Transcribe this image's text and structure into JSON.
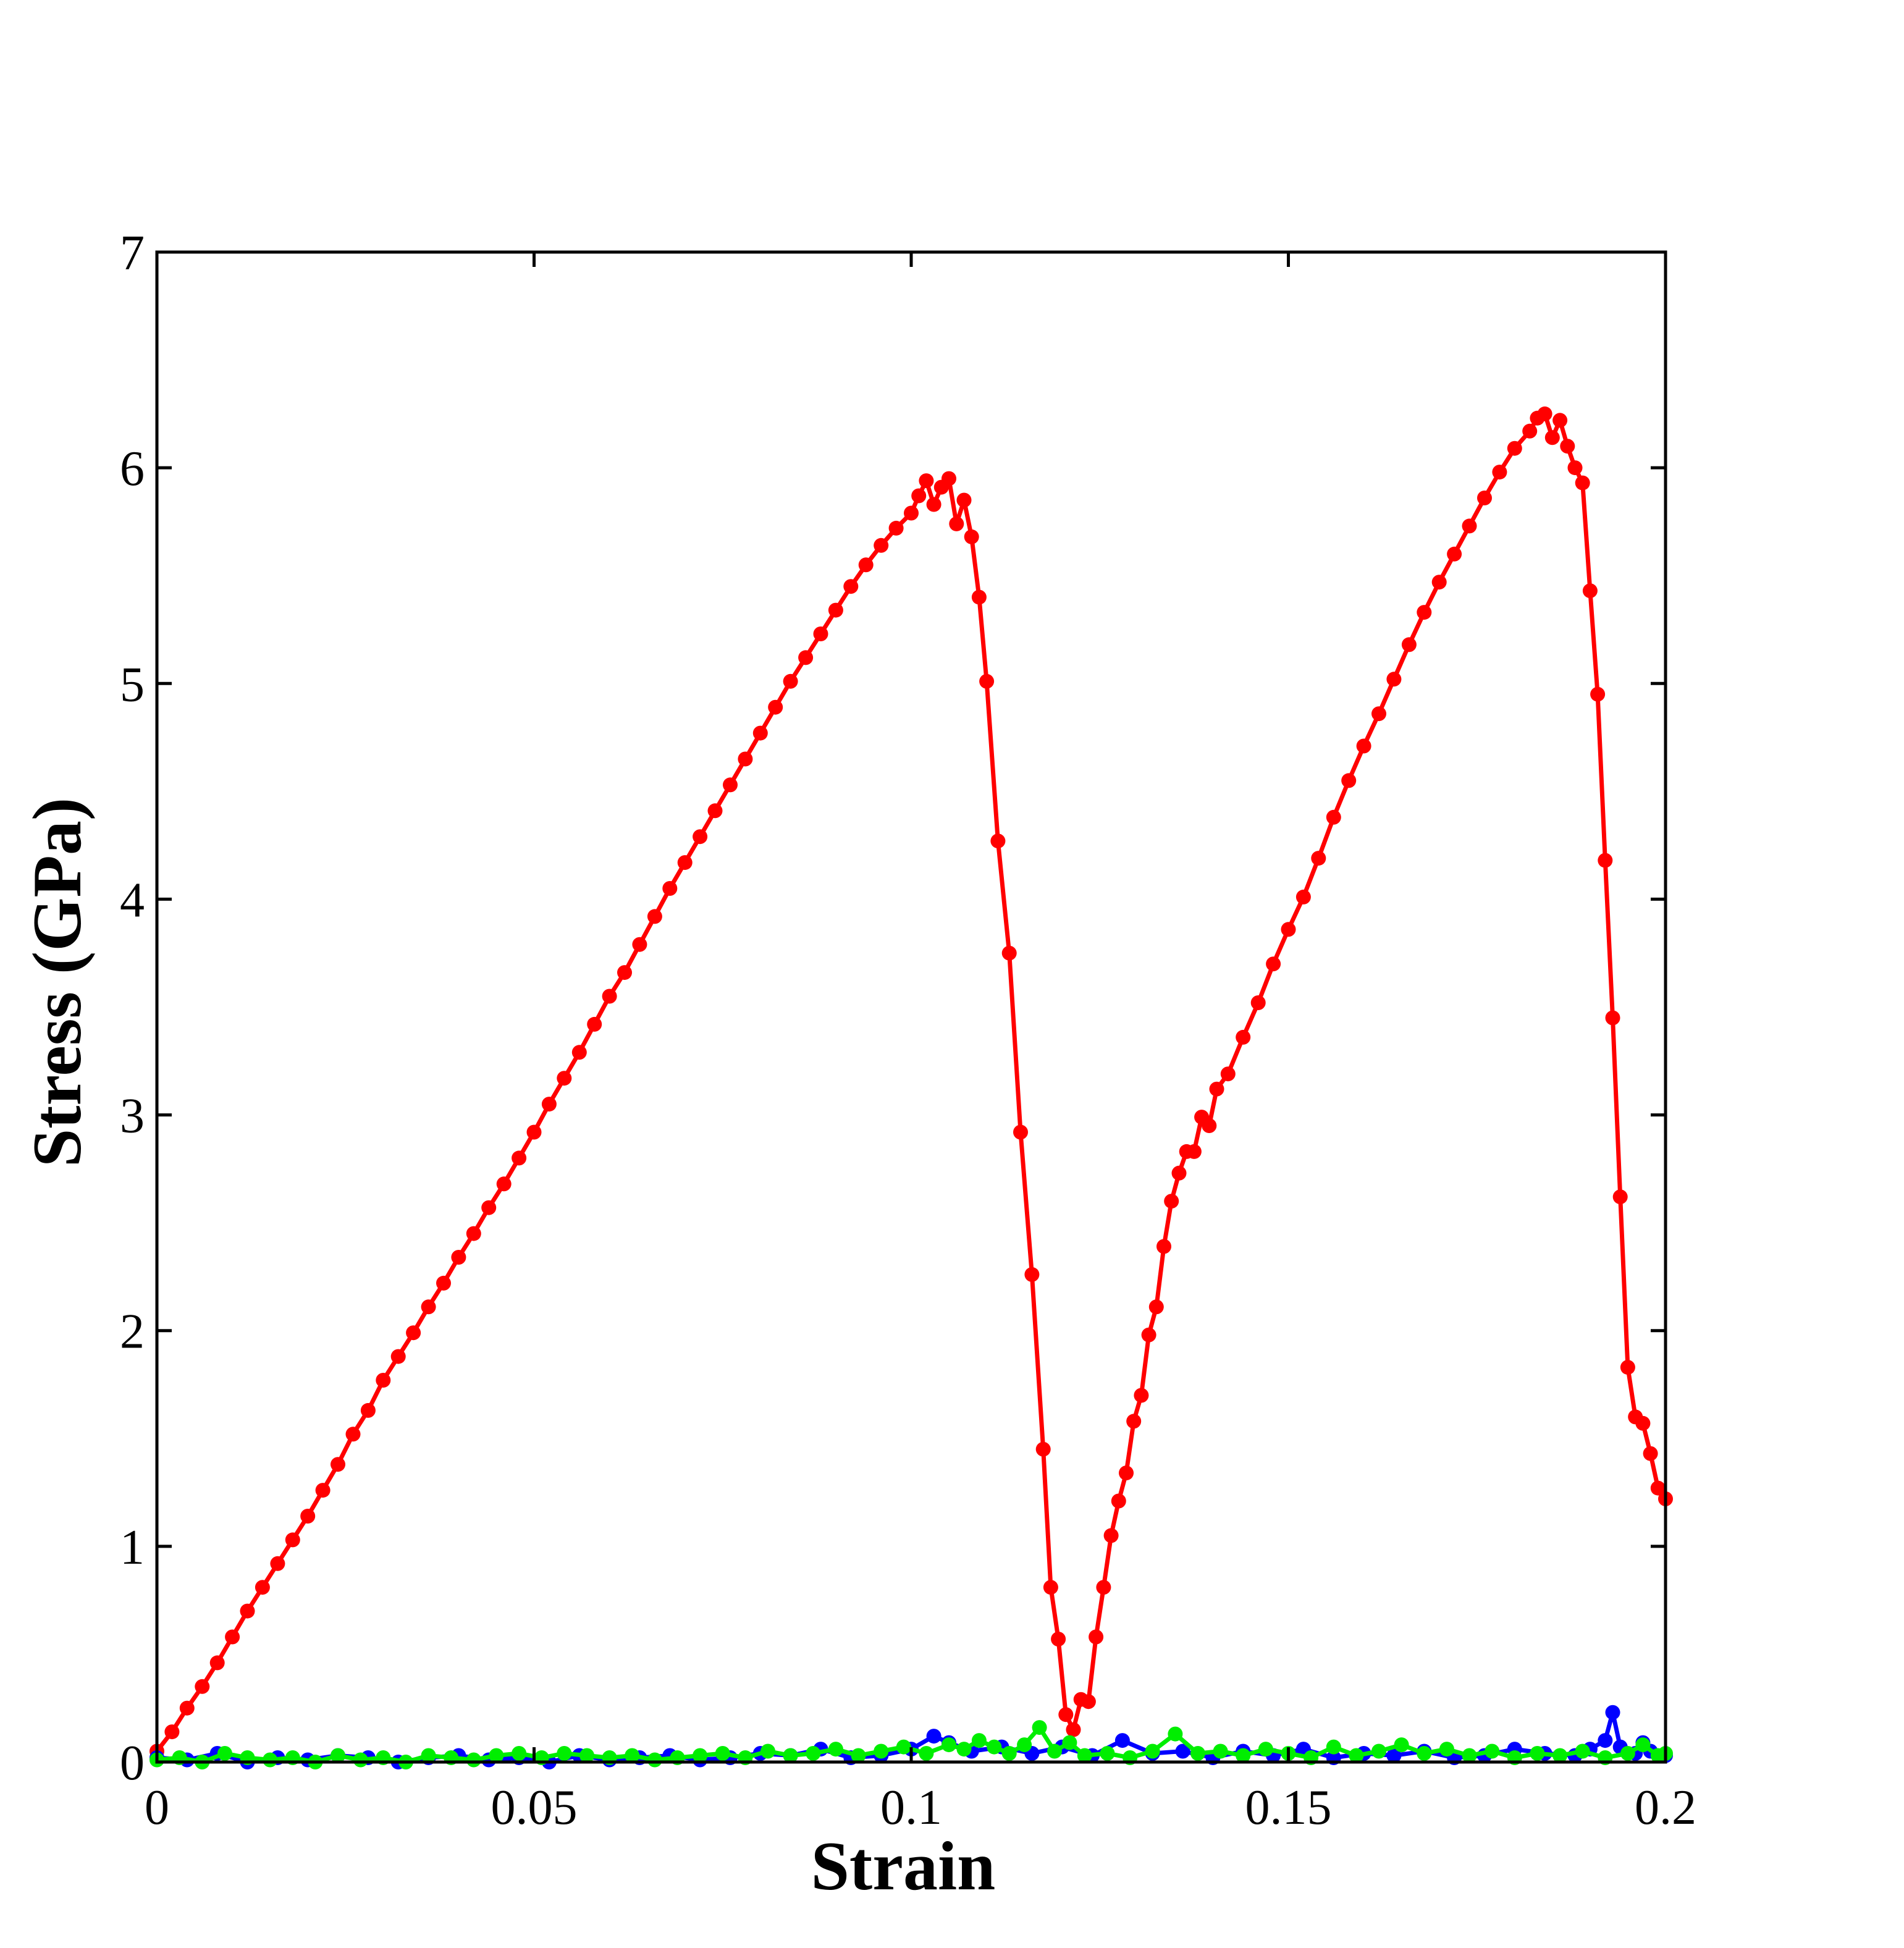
{
  "chart_data": {
    "type": "line",
    "title": "",
    "xlabel": "Strain",
    "ylabel": "Stress (GPa)",
    "xlim": [
      0,
      0.2
    ],
    "ylim": [
      0,
      7
    ],
    "x_ticks": [
      "0",
      "0.05",
      "0.1",
      "0.15",
      "0.2"
    ],
    "y_ticks": [
      "0",
      "1",
      "2",
      "3",
      "4",
      "5",
      "6",
      "7"
    ],
    "grid": false,
    "legend": "none",
    "series": [
      {
        "color": "#ff0000",
        "points": [
          [
            0.0,
            0.05
          ],
          [
            0.002,
            0.14
          ],
          [
            0.004,
            0.25
          ],
          [
            0.006,
            0.35
          ],
          [
            0.008,
            0.46
          ],
          [
            0.01,
            0.58
          ],
          [
            0.012,
            0.7
          ],
          [
            0.014,
            0.81
          ],
          [
            0.016,
            0.92
          ],
          [
            0.018,
            1.03
          ],
          [
            0.02,
            1.14
          ],
          [
            0.022,
            1.26
          ],
          [
            0.024,
            1.38
          ],
          [
            0.026,
            1.52
          ],
          [
            0.028,
            1.63
          ],
          [
            0.03,
            1.77
          ],
          [
            0.032,
            1.88
          ],
          [
            0.034,
            1.99
          ],
          [
            0.036,
            2.11
          ],
          [
            0.038,
            2.22
          ],
          [
            0.04,
            2.34
          ],
          [
            0.042,
            2.45
          ],
          [
            0.044,
            2.57
          ],
          [
            0.046,
            2.68
          ],
          [
            0.048,
            2.8
          ],
          [
            0.05,
            2.92
          ],
          [
            0.052,
            3.05
          ],
          [
            0.054,
            3.17
          ],
          [
            0.056,
            3.29
          ],
          [
            0.058,
            3.42
          ],
          [
            0.06,
            3.55
          ],
          [
            0.062,
            3.66
          ],
          [
            0.064,
            3.79
          ],
          [
            0.066,
            3.92
          ],
          [
            0.068,
            4.05
          ],
          [
            0.07,
            4.17
          ],
          [
            0.072,
            4.29
          ],
          [
            0.074,
            4.41
          ],
          [
            0.076,
            4.53
          ],
          [
            0.078,
            4.65
          ],
          [
            0.08,
            4.77
          ],
          [
            0.082,
            4.89
          ],
          [
            0.084,
            5.01
          ],
          [
            0.086,
            5.12
          ],
          [
            0.088,
            5.23
          ],
          [
            0.09,
            5.34
          ],
          [
            0.092,
            5.45
          ],
          [
            0.094,
            5.55
          ],
          [
            0.096,
            5.64
          ],
          [
            0.098,
            5.72
          ],
          [
            0.1,
            5.79
          ],
          [
            0.101,
            5.87
          ],
          [
            0.102,
            5.94
          ],
          [
            0.103,
            5.83
          ],
          [
            0.104,
            5.91
          ],
          [
            0.105,
            5.95
          ],
          [
            0.106,
            5.74
          ],
          [
            0.107,
            5.85
          ],
          [
            0.108,
            5.68
          ],
          [
            0.109,
            5.4
          ],
          [
            0.11,
            5.01
          ],
          [
            0.1115,
            4.27
          ],
          [
            0.113,
            3.75
          ],
          [
            0.1145,
            2.92
          ],
          [
            0.116,
            2.26
          ],
          [
            0.1175,
            1.45
          ],
          [
            0.1185,
            0.81
          ],
          [
            0.1195,
            0.57
          ],
          [
            0.1205,
            0.22
          ],
          [
            0.1215,
            0.15
          ],
          [
            0.1225,
            0.29
          ],
          [
            0.1235,
            0.28
          ],
          [
            0.1245,
            0.58
          ],
          [
            0.1255,
            0.81
          ],
          [
            0.1265,
            1.05
          ],
          [
            0.1275,
            1.21
          ],
          [
            0.1285,
            1.34
          ],
          [
            0.1295,
            1.58
          ],
          [
            0.1305,
            1.7
          ],
          [
            0.1315,
            1.98
          ],
          [
            0.1325,
            2.11
          ],
          [
            0.1335,
            2.39
          ],
          [
            0.1345,
            2.6
          ],
          [
            0.1355,
            2.73
          ],
          [
            0.1365,
            2.83
          ],
          [
            0.1375,
            2.83
          ],
          [
            0.1385,
            2.99
          ],
          [
            0.1395,
            2.95
          ],
          [
            0.1405,
            3.12
          ],
          [
            0.142,
            3.19
          ],
          [
            0.144,
            3.36
          ],
          [
            0.146,
            3.52
          ],
          [
            0.148,
            3.7
          ],
          [
            0.15,
            3.86
          ],
          [
            0.152,
            4.01
          ],
          [
            0.154,
            4.19
          ],
          [
            0.156,
            4.38
          ],
          [
            0.158,
            4.55
          ],
          [
            0.16,
            4.71
          ],
          [
            0.162,
            4.86
          ],
          [
            0.164,
            5.02
          ],
          [
            0.166,
            5.18
          ],
          [
            0.168,
            5.33
          ],
          [
            0.17,
            5.47
          ],
          [
            0.172,
            5.6
          ],
          [
            0.174,
            5.73
          ],
          [
            0.176,
            5.86
          ],
          [
            0.178,
            5.98
          ],
          [
            0.18,
            6.09
          ],
          [
            0.182,
            6.17
          ],
          [
            0.183,
            6.23
          ],
          [
            0.184,
            6.25
          ],
          [
            0.185,
            6.14
          ],
          [
            0.186,
            6.22
          ],
          [
            0.187,
            6.1
          ],
          [
            0.188,
            6.0
          ],
          [
            0.189,
            5.93
          ],
          [
            0.19,
            5.43
          ],
          [
            0.191,
            4.95
          ],
          [
            0.192,
            4.18
          ],
          [
            0.193,
            3.45
          ],
          [
            0.194,
            2.62
          ],
          [
            0.195,
            1.83
          ],
          [
            0.196,
            1.6
          ],
          [
            0.197,
            1.57
          ],
          [
            0.198,
            1.43
          ],
          [
            0.199,
            1.27
          ],
          [
            0.2,
            1.22
          ]
        ]
      },
      {
        "color": "#0000ff",
        "points": [
          [
            0.0,
            0.02
          ],
          [
            0.004,
            0.01
          ],
          [
            0.008,
            0.04
          ],
          [
            0.012,
            0.0
          ],
          [
            0.016,
            0.02
          ],
          [
            0.02,
            0.01
          ],
          [
            0.024,
            0.03
          ],
          [
            0.028,
            0.02
          ],
          [
            0.032,
            0.0
          ],
          [
            0.036,
            0.02
          ],
          [
            0.04,
            0.03
          ],
          [
            0.044,
            0.01
          ],
          [
            0.048,
            0.02
          ],
          [
            0.052,
            0.0
          ],
          [
            0.056,
            0.03
          ],
          [
            0.06,
            0.01
          ],
          [
            0.064,
            0.02
          ],
          [
            0.068,
            0.03
          ],
          [
            0.072,
            0.01
          ],
          [
            0.076,
            0.02
          ],
          [
            0.08,
            0.04
          ],
          [
            0.084,
            0.03
          ],
          [
            0.088,
            0.06
          ],
          [
            0.092,
            0.02
          ],
          [
            0.096,
            0.03
          ],
          [
            0.1,
            0.06
          ],
          [
            0.103,
            0.12
          ],
          [
            0.105,
            0.09
          ],
          [
            0.108,
            0.05
          ],
          [
            0.112,
            0.07
          ],
          [
            0.116,
            0.04
          ],
          [
            0.12,
            0.07
          ],
          [
            0.124,
            0.03
          ],
          [
            0.128,
            0.1
          ],
          [
            0.132,
            0.04
          ],
          [
            0.136,
            0.05
          ],
          [
            0.14,
            0.02
          ],
          [
            0.144,
            0.05
          ],
          [
            0.148,
            0.03
          ],
          [
            0.152,
            0.06
          ],
          [
            0.156,
            0.02
          ],
          [
            0.16,
            0.04
          ],
          [
            0.164,
            0.03
          ],
          [
            0.168,
            0.05
          ],
          [
            0.172,
            0.02
          ],
          [
            0.176,
            0.03
          ],
          [
            0.18,
            0.06
          ],
          [
            0.184,
            0.04
          ],
          [
            0.188,
            0.03
          ],
          [
            0.19,
            0.06
          ],
          [
            0.192,
            0.1
          ],
          [
            0.193,
            0.23
          ],
          [
            0.194,
            0.07
          ],
          [
            0.196,
            0.04
          ],
          [
            0.197,
            0.09
          ],
          [
            0.198,
            0.05
          ],
          [
            0.2,
            0.03
          ]
        ]
      },
      {
        "color": "#00ee00",
        "points": [
          [
            0.0,
            0.01
          ],
          [
            0.003,
            0.02
          ],
          [
            0.006,
            0.0
          ],
          [
            0.009,
            0.04
          ],
          [
            0.012,
            0.02
          ],
          [
            0.015,
            0.01
          ],
          [
            0.018,
            0.02
          ],
          [
            0.021,
            0.0
          ],
          [
            0.024,
            0.03
          ],
          [
            0.027,
            0.01
          ],
          [
            0.03,
            0.02
          ],
          [
            0.033,
            0.0
          ],
          [
            0.036,
            0.03
          ],
          [
            0.039,
            0.02
          ],
          [
            0.042,
            0.01
          ],
          [
            0.045,
            0.03
          ],
          [
            0.048,
            0.04
          ],
          [
            0.051,
            0.02
          ],
          [
            0.054,
            0.04
          ],
          [
            0.057,
            0.03
          ],
          [
            0.06,
            0.02
          ],
          [
            0.063,
            0.03
          ],
          [
            0.066,
            0.01
          ],
          [
            0.069,
            0.02
          ],
          [
            0.072,
            0.03
          ],
          [
            0.075,
            0.04
          ],
          [
            0.078,
            0.02
          ],
          [
            0.081,
            0.05
          ],
          [
            0.084,
            0.03
          ],
          [
            0.087,
            0.04
          ],
          [
            0.09,
            0.06
          ],
          [
            0.093,
            0.03
          ],
          [
            0.096,
            0.05
          ],
          [
            0.099,
            0.07
          ],
          [
            0.102,
            0.04
          ],
          [
            0.105,
            0.08
          ],
          [
            0.107,
            0.06
          ],
          [
            0.109,
            0.1
          ],
          [
            0.111,
            0.07
          ],
          [
            0.113,
            0.04
          ],
          [
            0.115,
            0.08
          ],
          [
            0.117,
            0.16
          ],
          [
            0.119,
            0.05
          ],
          [
            0.121,
            0.09
          ],
          [
            0.123,
            0.03
          ],
          [
            0.126,
            0.04
          ],
          [
            0.129,
            0.02
          ],
          [
            0.132,
            0.05
          ],
          [
            0.135,
            0.13
          ],
          [
            0.138,
            0.04
          ],
          [
            0.141,
            0.05
          ],
          [
            0.144,
            0.03
          ],
          [
            0.147,
            0.06
          ],
          [
            0.15,
            0.04
          ],
          [
            0.153,
            0.02
          ],
          [
            0.156,
            0.07
          ],
          [
            0.159,
            0.03
          ],
          [
            0.162,
            0.05
          ],
          [
            0.165,
            0.08
          ],
          [
            0.168,
            0.04
          ],
          [
            0.171,
            0.06
          ],
          [
            0.174,
            0.03
          ],
          [
            0.177,
            0.05
          ],
          [
            0.18,
            0.02
          ],
          [
            0.183,
            0.04
          ],
          [
            0.186,
            0.03
          ],
          [
            0.189,
            0.05
          ],
          [
            0.192,
            0.02
          ],
          [
            0.195,
            0.04
          ],
          [
            0.197,
            0.08
          ],
          [
            0.199,
            0.03
          ],
          [
            0.2,
            0.04
          ]
        ]
      }
    ]
  }
}
